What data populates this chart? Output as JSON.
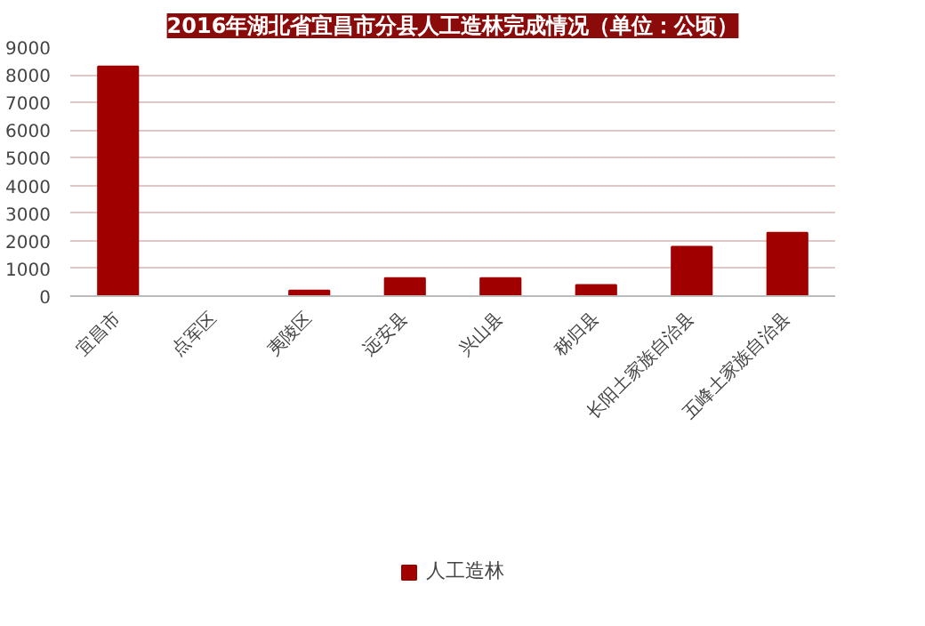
{
  "chart_data": {
    "type": "bar",
    "title": "2016年湖北省宜昌市分县人工造林完成情况（单位：公顷）",
    "categories": [
      "宜昌市",
      "点军区",
      "夷陵区",
      "远安县",
      "兴山县",
      "秭归县",
      "长阳土家族自治县",
      "五峰土家族自治县"
    ],
    "series": [
      {
        "name": "人工造林",
        "color": "#a00000",
        "values": [
          8300,
          0,
          200,
          650,
          650,
          400,
          1780,
          2290
        ]
      }
    ],
    "ylim": [
      0,
      9000
    ],
    "yticks": [
      0,
      1000,
      2000,
      3000,
      4000,
      5000,
      6000,
      7000,
      8000,
      9000
    ],
    "grid": "y",
    "legend": "bottom"
  }
}
